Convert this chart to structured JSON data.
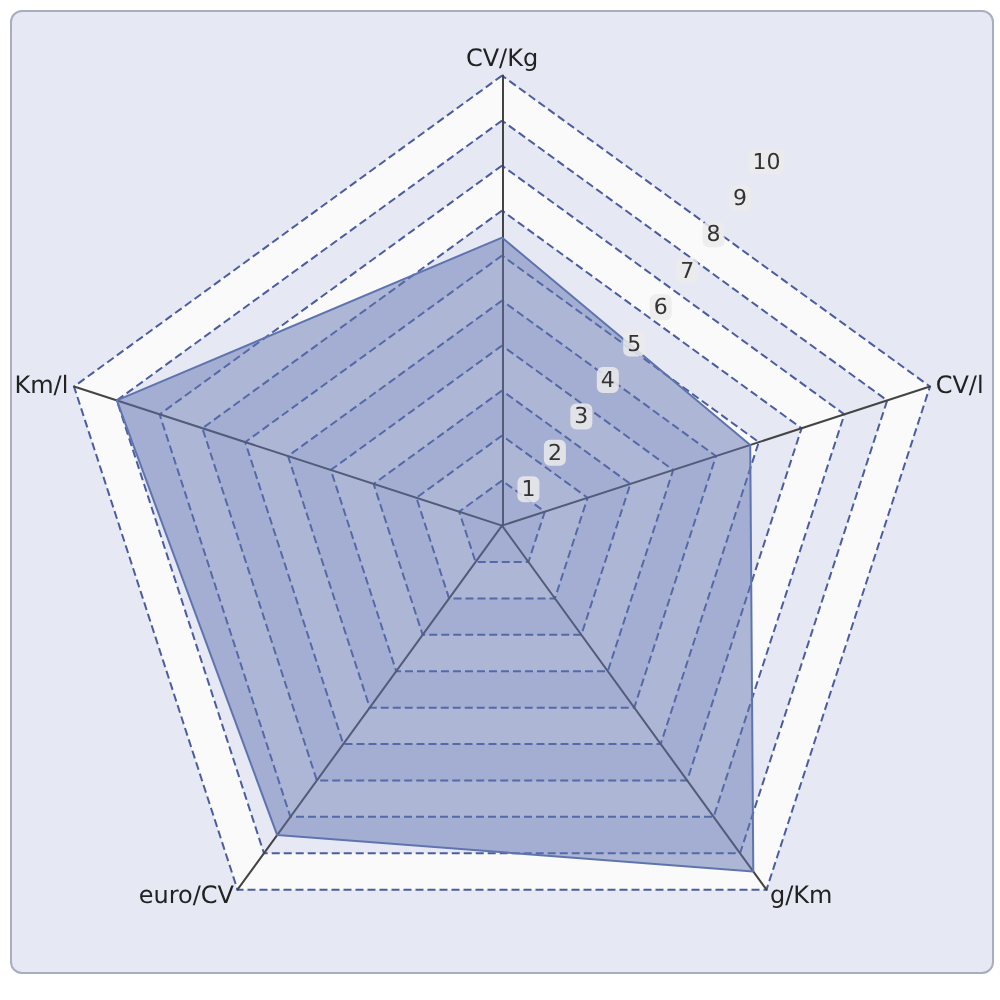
{
  "chart_data": {
    "type": "radar",
    "categories": [
      "CV/Kg",
      "CV/l",
      "g/Km",
      "euro/CV",
      "Km/l"
    ],
    "series": [
      {
        "color": "#5f74b0",
        "values": [
          6.4,
          5.8,
          9.5,
          8.5,
          9.0
        ]
      }
    ],
    "ylim": [
      0,
      10
    ],
    "yticks": [
      1,
      2,
      3,
      4,
      5,
      6,
      7,
      8,
      9,
      10
    ],
    "grid": true,
    "marker": "none",
    "line_style": "solid"
  }
}
